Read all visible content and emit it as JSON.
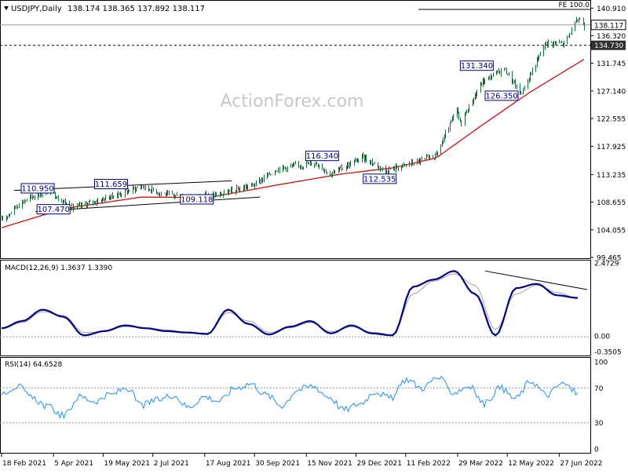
{
  "header": {
    "symbol_label": "USDJPY,Daily",
    "ohlc": "138.174 138.365 137.892 138.117",
    "fe_label": "FE 100.0",
    "watermark": "ActionForex.com"
  },
  "chart_data": [
    {
      "type": "candlestick",
      "symbol": "USDJPY",
      "timeframe": "Daily",
      "ylim": [
        99.465,
        142.0
      ],
      "y_ticks": [
        "140.910",
        "136.320",
        "131.745",
        "127.140",
        "122.555",
        "117.925",
        "113.235",
        "108.655",
        "104.055",
        "99.465"
      ],
      "current_price": "138.117",
      "support_line": "134.730",
      "x_labels": [
        "18 Feb 2021",
        "5 Apr 2021",
        "19 May 2021",
        "2 Jul 2021",
        "17 Aug 2021",
        "30 Sep 2021",
        "15 Nov 2021",
        "29 Dec 2021",
        "11 Feb 2022",
        "29 Mar 2022",
        "12 May 2022",
        "27 Jun 2022"
      ],
      "price_path": [
        {
          "date": "2021-02-18",
          "close": 105.6
        },
        {
          "date": "2021-03-05",
          "close": 108.4
        },
        {
          "date": "2021-03-31",
          "close": 110.7
        },
        {
          "date": "2021-04-22",
          "close": 107.6
        },
        {
          "date": "2021-05-31",
          "close": 109.9
        },
        {
          "date": "2021-06-22",
          "close": 111.3
        },
        {
          "date": "2021-07-15",
          "close": 109.8
        },
        {
          "date": "2021-08-05",
          "close": 109.6
        },
        {
          "date": "2021-08-31",
          "close": 109.9
        },
        {
          "date": "2021-09-30",
          "close": 111.6
        },
        {
          "date": "2021-10-20",
          "close": 114.2
        },
        {
          "date": "2021-11-24",
          "close": 115.2
        },
        {
          "date": "2021-12-06",
          "close": 113.3
        },
        {
          "date": "2022-01-04",
          "close": 116.1
        },
        {
          "date": "2022-01-24",
          "close": 113.9
        },
        {
          "date": "2022-02-24",
          "close": 115.5
        },
        {
          "date": "2022-03-10",
          "close": 116.4
        },
        {
          "date": "2022-03-28",
          "close": 124.0
        },
        {
          "date": "2022-03-31",
          "close": 121.8
        },
        {
          "date": "2022-04-20",
          "close": 128.7
        },
        {
          "date": "2022-05-09",
          "close": 130.9
        },
        {
          "date": "2022-05-24",
          "close": 126.6
        },
        {
          "date": "2022-06-15",
          "close": 135.2
        },
        {
          "date": "2022-07-01",
          "close": 135.0
        },
        {
          "date": "2022-07-14",
          "close": 139.2
        },
        {
          "date": "2022-07-19",
          "close": 138.1
        }
      ],
      "ma_path": [
        {
          "date": "2021-02-18",
          "value": 104.4
        },
        {
          "date": "2021-04-15",
          "value": 107.6
        },
        {
          "date": "2021-06-22",
          "value": 109.5
        },
        {
          "date": "2021-08-20",
          "value": 109.4
        },
        {
          "date": "2021-10-20",
          "value": 111.5
        },
        {
          "date": "2021-12-15",
          "value": 113.3
        },
        {
          "date": "2022-02-01",
          "value": 114.4
        },
        {
          "date": "2022-03-10",
          "value": 116.0
        },
        {
          "date": "2022-04-20",
          "value": 121.5
        },
        {
          "date": "2022-05-31",
          "value": 126.8
        },
        {
          "date": "2022-07-19",
          "value": 132.4
        }
      ],
      "annotations": [
        {
          "label": "110.950",
          "value": 110.95
        },
        {
          "label": "107.470",
          "value": 107.47
        },
        {
          "label": "111.659",
          "value": 111.659
        },
        {
          "label": "109.118",
          "value": 109.118
        },
        {
          "label": "116.340",
          "value": 116.34
        },
        {
          "label": "112.535",
          "value": 112.535
        },
        {
          "label": "131.340",
          "value": 131.34
        },
        {
          "label": "126.350",
          "value": 126.35
        }
      ]
    },
    {
      "type": "line",
      "title": "MACD(12,26,9) 1.3637 1.3390",
      "ylim": [
        -0.3505,
        2.4729
      ],
      "y_ticks": [
        "2.4729",
        "0.00",
        "-0.3505"
      ],
      "series": [
        {
          "name": "MACD",
          "color": "#00008b",
          "values": [
            0.3,
            0.55,
            0.95,
            0.7,
            0.05,
            0.2,
            0.4,
            0.3,
            0.2,
            0.15,
            0.1,
            0.95,
            0.45,
            0.08,
            0.35,
            0.55,
            0.12,
            0.4,
            0.12,
            0.05,
            1.75,
            2.0,
            2.3,
            1.5,
            0.05,
            1.7,
            1.85,
            1.45,
            1.36
          ]
        },
        {
          "name": "Signal",
          "color": "#a0a0a0",
          "values": [
            0.28,
            0.5,
            0.88,
            0.75,
            0.15,
            0.18,
            0.36,
            0.32,
            0.24,
            0.17,
            0.12,
            0.85,
            0.55,
            0.15,
            0.32,
            0.5,
            0.18,
            0.35,
            0.16,
            0.08,
            1.5,
            1.95,
            2.2,
            1.8,
            0.25,
            1.5,
            1.8,
            1.55,
            1.34
          ]
        }
      ]
    },
    {
      "type": "line",
      "title": "RSI(14) 64.6528",
      "ylim": [
        0,
        100
      ],
      "y_ticks": [
        "100",
        "70",
        "30",
        "0"
      ],
      "series": [
        {
          "name": "RSI",
          "color": "#1e90ff",
          "values": [
            65,
            72,
            58,
            48,
            38,
            60,
            55,
            62,
            70,
            50,
            56,
            62,
            48,
            60,
            55,
            70,
            75,
            62,
            50,
            68,
            72,
            60,
            45,
            52,
            66,
            58,
            80,
            70,
            82,
            65,
            72,
            52,
            70,
            58,
            78,
            62,
            75,
            64.65
          ]
        }
      ]
    }
  ]
}
